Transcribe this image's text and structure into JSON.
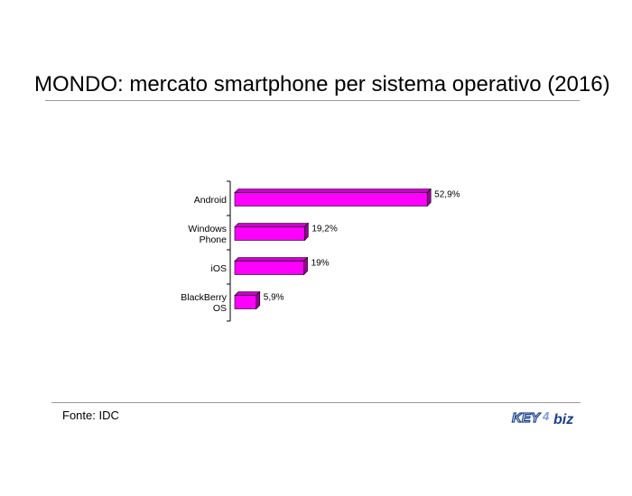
{
  "header": {
    "title": "MONDO: mercato smartphone per sistema operativo (2016)"
  },
  "footer": {
    "source": "Fonte: IDC",
    "logo_text_left": "KEY",
    "logo_text_mid": "4",
    "logo_text_right": "biz"
  },
  "colors": {
    "bar_front": "#ff00ff",
    "bar_top": "#cc00cc",
    "bar_side": "#990099",
    "logo_blue": "#1b3f8f",
    "logo_light": "#7a9bd6"
  },
  "chart_data": {
    "type": "bar",
    "orientation": "horizontal",
    "title": "MONDO: mercato smartphone per sistema operativo (2016)",
    "categories": [
      [
        "Android"
      ],
      [
        "Windows",
        "Phone"
      ],
      [
        "iOS"
      ],
      [
        "BlackBerry",
        "OS"
      ]
    ],
    "values": [
      52.9,
      19.2,
      19,
      5.9
    ],
    "value_labels": [
      "52,9%",
      "19,2%",
      "19%",
      "5,9%"
    ],
    "xlim": [
      0,
      100
    ],
    "unit": "%",
    "grid": false,
    "legend": "none",
    "style": "3d"
  }
}
